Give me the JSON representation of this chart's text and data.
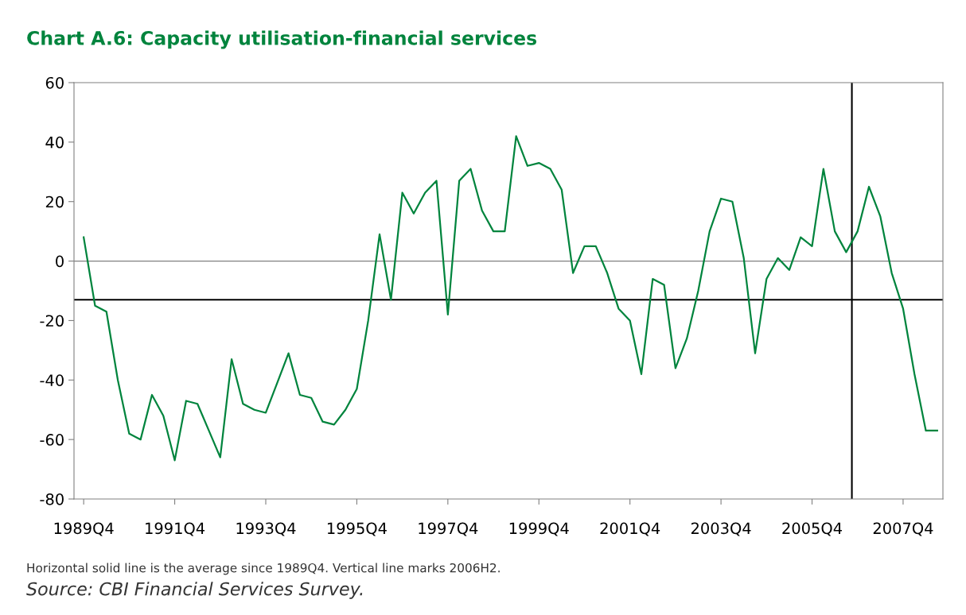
{
  "chart_data": {
    "type": "line",
    "title": "Chart A.6: Capacity utilisation-financial services",
    "categories": [
      "1989Q4",
      null,
      null,
      null,
      null,
      null,
      null,
      null,
      "1991Q4",
      null,
      null,
      null,
      null,
      null,
      null,
      null,
      "1993Q4",
      null,
      null,
      null,
      null,
      null,
      null,
      null,
      "1995Q4",
      null,
      null,
      null,
      null,
      null,
      null,
      null,
      "1997Q4",
      null,
      null,
      null,
      null,
      null,
      null,
      null,
      "1999Q4",
      null,
      null,
      null,
      null,
      null,
      null,
      null,
      "2001Q4",
      null,
      null,
      null,
      null,
      null,
      null,
      null,
      "2003Q4",
      null,
      null,
      null,
      null,
      null,
      null,
      null,
      "2005Q4",
      null,
      null,
      null,
      null,
      null,
      null,
      null,
      "2007Q4",
      null,
      null,
      null
    ],
    "series": [
      {
        "color": "#00843d",
        "values": [
          8,
          -15,
          -17,
          -40,
          -58,
          -60,
          -45,
          -52,
          -67,
          -47,
          -48,
          -57,
          -66,
          -33,
          -48,
          -50,
          -51,
          -41,
          -31,
          -45,
          -46,
          -54,
          -55,
          -50,
          -43,
          -20,
          9,
          -13,
          23,
          16,
          23,
          27,
          -18,
          27,
          31,
          17,
          10,
          10,
          42,
          32,
          33,
          31,
          24,
          -4,
          5,
          5,
          -4,
          -16,
          -20,
          -38,
          -6,
          -8,
          -36,
          -26,
          -10,
          10,
          21,
          20,
          1,
          -31,
          -6,
          1,
          -3,
          8,
          5,
          31,
          10,
          3,
          10,
          25,
          15,
          -4,
          -16,
          -38,
          -57,
          -57
        ]
      }
    ],
    "ylim": [
      -80,
      60
    ],
    "yticks": [
      -80,
      -60,
      -40,
      -20,
      0,
      20,
      40,
      60
    ],
    "ref_lines": [
      {
        "axis": "y",
        "value": 0,
        "color": "#808080"
      },
      {
        "axis": "y",
        "value": -13,
        "color": "#000000"
      }
    ],
    "grid": false,
    "annotations": [
      "Horizontal solid line is the average since 1989Q4. Vertical line marks 2006H2.",
      "Source: CBI Financial Services Survey."
    ]
  }
}
